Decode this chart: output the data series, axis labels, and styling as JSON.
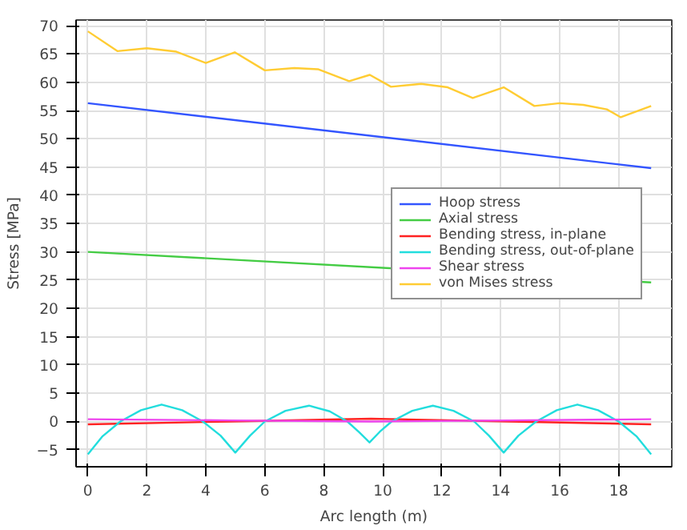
{
  "chart_data": {
    "type": "line",
    "xlabel": "Arc length (m)",
    "ylabel": "Stress [MPa]",
    "xlim": [
      -0.4,
      19.8
    ],
    "ylim": [
      -8,
      71
    ],
    "xticks": [
      0,
      2,
      4,
      6,
      8,
      10,
      12,
      14,
      16,
      18
    ],
    "yticks": [
      -5,
      0,
      5,
      10,
      15,
      20,
      25,
      30,
      35,
      40,
      45,
      50,
      55,
      60,
      65,
      70
    ],
    "grid": true,
    "legend": "right",
    "line_style": "solid",
    "series": [
      {
        "name": "Hoop stress",
        "color": "#3355ff",
        "x": [
          0,
          19.1
        ],
        "values": [
          56.3,
          44.8
        ]
      },
      {
        "name": "Axial stress",
        "color": "#44cc44",
        "x": [
          0,
          19.1
        ],
        "values": [
          30,
          24.6
        ]
      },
      {
        "name": "Bending stress, in-plane",
        "color": "#ff2222",
        "x": [
          0,
          4.8,
          9.6,
          14.3,
          19.1
        ],
        "values": [
          -0.5,
          0,
          0.5,
          0,
          -0.5
        ]
      },
      {
        "name": "Bending stress, out-of-plane",
        "color": "#22dddd",
        "x": [
          0,
          0.5,
          1.1,
          1.8,
          2.5,
          3.2,
          3.9,
          4.5,
          5.0,
          5.5,
          6.0,
          6.7,
          7.5,
          8.2,
          8.8,
          9.2,
          9.55,
          9.9,
          10.3,
          11.0,
          11.7,
          12.4,
          13.1,
          13.6,
          14.1,
          14.6,
          15.2,
          15.9,
          16.6,
          17.3,
          18.0,
          18.6,
          19.1
        ],
        "values": [
          -5.8,
          -2.6,
          0,
          2.0,
          3.0,
          2.0,
          0,
          -2.5,
          -5.5,
          -2.5,
          0,
          1.9,
          2.8,
          1.8,
          0,
          -1.9,
          -3.7,
          -1.8,
          0,
          1.9,
          2.8,
          1.9,
          0,
          -2.5,
          -5.5,
          -2.5,
          0,
          2.0,
          3.0,
          2.0,
          0,
          -2.6,
          -5.8
        ]
      },
      {
        "name": "Shear stress",
        "color": "#ee44ee",
        "x": [
          0,
          4.8,
          9.6,
          14.3,
          19.1
        ],
        "values": [
          0.4,
          0.2,
          0,
          0.2,
          0.4
        ]
      },
      {
        "name": "von Mises stress",
        "color": "#ffcc33",
        "x": [
          0,
          1.0,
          2.0,
          3.0,
          4.0,
          4.98,
          6.0,
          7.0,
          7.8,
          8.86,
          9.56,
          10.28,
          11.3,
          12.2,
          13.05,
          14.1,
          15.14,
          16.0,
          16.8,
          17.6,
          18.07,
          19.1
        ],
        "values": [
          69,
          65.5,
          66,
          65.4,
          63.4,
          65.3,
          62.1,
          62.5,
          62.3,
          60.2,
          61.3,
          59.2,
          59.7,
          59.1,
          57.2,
          59.1,
          55.8,
          56.3,
          56,
          55.2,
          53.8,
          55.8
        ]
      }
    ]
  }
}
